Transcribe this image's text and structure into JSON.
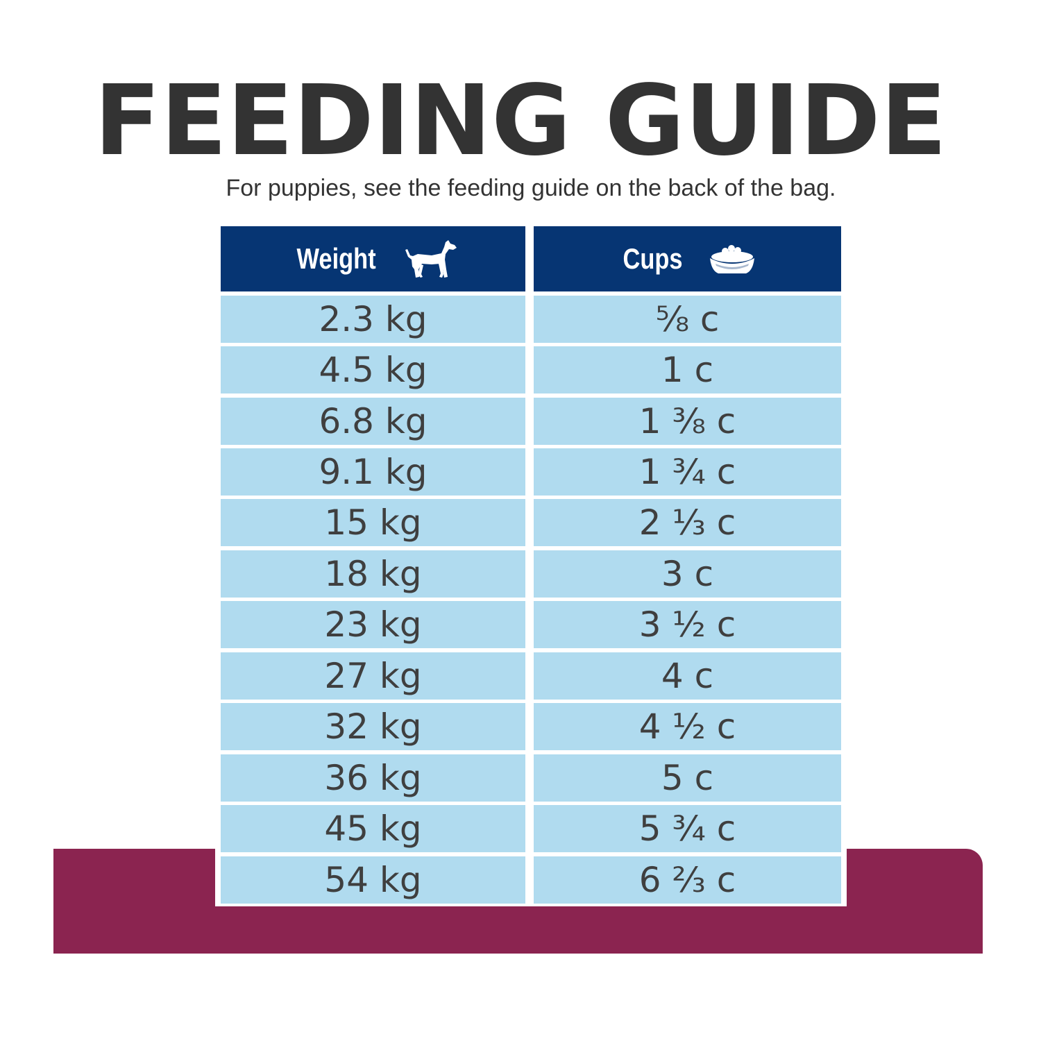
{
  "title": "FEEDING GUIDE",
  "subtitle": "For puppies, see the feeding guide on the back of the bag.",
  "colors": {
    "header_bg": "#063573",
    "row_bg": "#b0dbef",
    "accent_band": "#8b2450",
    "text": "#333333"
  },
  "table": {
    "headers": [
      {
        "label": "Weight",
        "icon": "dog-icon"
      },
      {
        "label": "Cups",
        "icon": "food-bowl-icon"
      }
    ],
    "rows": [
      {
        "weight": "2.3 kg",
        "cups": "⅝ c"
      },
      {
        "weight": "4.5 kg",
        "cups": "1 c"
      },
      {
        "weight": "6.8 kg",
        "cups": "1 ⅜ c"
      },
      {
        "weight": "9.1 kg",
        "cups": "1 ¾ c"
      },
      {
        "weight": "15 kg",
        "cups": "2 ⅓ c"
      },
      {
        "weight": "18 kg",
        "cups": "3 c"
      },
      {
        "weight": "23 kg",
        "cups": "3 ½ c"
      },
      {
        "weight": "27 kg",
        "cups": "4 c"
      },
      {
        "weight": "32 kg",
        "cups": "4 ½ c"
      },
      {
        "weight": "36 kg",
        "cups": "5 c"
      },
      {
        "weight": "45 kg",
        "cups": "5 ¾ c"
      },
      {
        "weight": "54 kg",
        "cups": "6 ⅔ c"
      }
    ]
  }
}
